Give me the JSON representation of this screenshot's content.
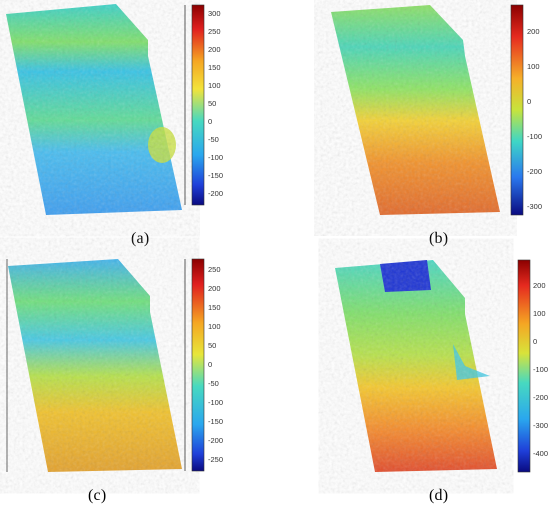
{
  "figure": {
    "panels": [
      {
        "id": "a",
        "caption": "(a)",
        "colorbar": {
          "min": -230,
          "max": 330,
          "ticks": [
            "300",
            "250",
            "200",
            "150",
            "100",
            "50",
            "0",
            "-50",
            "-100",
            "-150",
            "-200"
          ]
        },
        "field_description_colors": {
          "top": "#39d1c9",
          "upper_band": "#7fe06a",
          "mid": "#35c3e6",
          "lower": "#4aa6f0",
          "right_patch": "#c8e13a"
        }
      },
      {
        "id": "b",
        "caption": "(b)",
        "colorbar": {
          "min": -330,
          "max": 260,
          "ticks": [
            "200",
            "100",
            "0",
            "-100",
            "-200",
            "-300"
          ]
        },
        "field_description_colors": {
          "top": "#7fe06a",
          "mid": "#49d6b8",
          "lower": "#f09a2a",
          "bottom": "#e2682a"
        }
      },
      {
        "id": "c",
        "caption": "(c)",
        "colorbar": {
          "min": -280,
          "max": 290,
          "ticks": [
            "250",
            "200",
            "150",
            "100",
            "50",
            "0",
            "-50",
            "-100",
            "-150",
            "-200",
            "-250"
          ]
        },
        "field_description_colors": {
          "top": "#3fb3ee",
          "upper_band": "#6fe07c",
          "mid": "#46c9e4",
          "lower": "#f1c22c",
          "bottom": "#e3a12c"
        }
      },
      {
        "id": "d",
        "caption": "(d)",
        "colorbar": {
          "min": -470,
          "max": 290,
          "ticks": [
            "200",
            "100",
            "0",
            "-100",
            "-200",
            "-300",
            "-400"
          ]
        },
        "field_description_colors": {
          "top_blue_patch": "#1c33d4",
          "top": "#4ad7c4",
          "mid": "#9be15f",
          "lower": "#f58a2a",
          "bottom": "#e24a2a"
        }
      }
    ]
  }
}
